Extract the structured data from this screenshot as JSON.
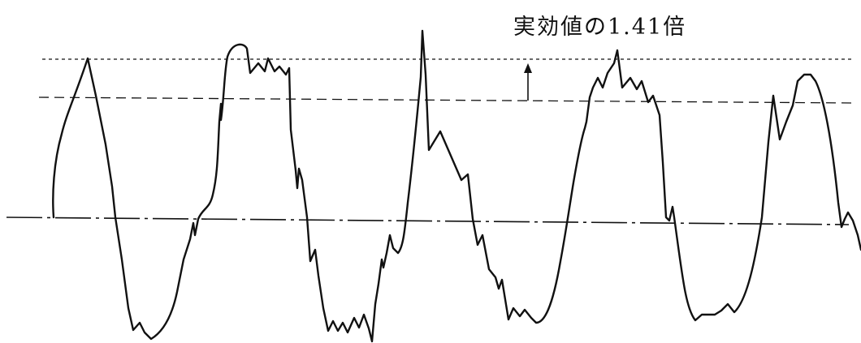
{
  "annotation": {
    "label": "実効値の1.41倍"
  },
  "colors": {
    "ink": "#111111",
    "background": "#ffffff"
  },
  "reference_lines": [
    {
      "name": "peak-level-line",
      "style": "dotted"
    },
    {
      "name": "rms-level-line",
      "style": "dashed"
    },
    {
      "name": "zero-baseline",
      "style": "dash-dot"
    }
  ],
  "arrow": {
    "direction": "up"
  }
}
